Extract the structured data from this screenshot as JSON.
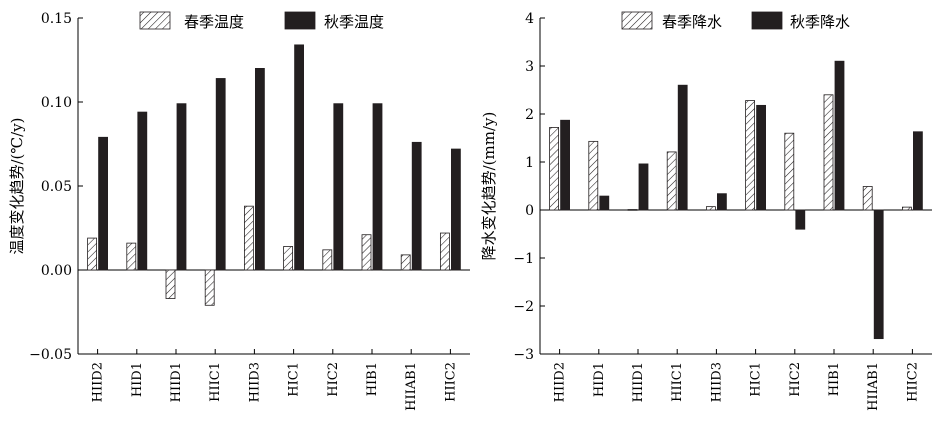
{
  "chart_data": [
    {
      "type": "bar",
      "title": "",
      "xlabel": "",
      "ylabel": "温度变化趋势/(℃/y)",
      "ylim": [
        -0.05,
        0.15
      ],
      "yticks": [
        -0.05,
        0.0,
        0.05,
        0.1,
        0.15
      ],
      "ytick_labels": [
        "−0.05",
        "0.00",
        "0.05",
        "0.10",
        "0.15"
      ],
      "grid": false,
      "legend": "top-center",
      "categories": [
        "HIID2",
        "HID1",
        "HIID1",
        "HIIC1",
        "HIID3",
        "HIC1",
        "HIC2",
        "HIB1",
        "HIIAB1",
        "HIIC2"
      ],
      "series": [
        {
          "name": "春季温度",
          "fill": "hatch",
          "values": [
            0.019,
            0.016,
            -0.017,
            -0.021,
            0.038,
            0.014,
            0.012,
            0.021,
            0.009,
            0.022
          ]
        },
        {
          "name": "秋季温度",
          "fill": "solid",
          "color": "#231f20",
          "values": [
            0.079,
            0.094,
            0.099,
            0.114,
            0.12,
            0.134,
            0.099,
            0.099,
            0.076,
            0.072
          ]
        }
      ]
    },
    {
      "type": "bar",
      "title": "",
      "xlabel": "",
      "ylabel": "降水变化趋势/(mm/y)",
      "ylim": [
        -3,
        4
      ],
      "yticks": [
        -3,
        -2,
        -1,
        0,
        1,
        2,
        3,
        4
      ],
      "ytick_labels": [
        "−3",
        "−2",
        "−1",
        "0",
        "1",
        "2",
        "3",
        "4"
      ],
      "grid": false,
      "legend": "top-center",
      "categories": [
        "HIID2",
        "HID1",
        "HIID1",
        "HIIC1",
        "HIID3",
        "HIC1",
        "HIC2",
        "HIB1",
        "HIIAB1",
        "HIIC2"
      ],
      "series": [
        {
          "name": "春季降水",
          "fill": "hatch",
          "values": [
            1.72,
            1.43,
            0.01,
            1.21,
            0.07,
            2.28,
            1.6,
            2.4,
            0.49,
            0.06
          ]
        },
        {
          "name": "秋季降水",
          "fill": "solid",
          "color": "#231f20",
          "values": [
            1.87,
            0.29,
            0.96,
            2.6,
            0.34,
            2.18,
            -0.4,
            3.1,
            -2.68,
            1.63
          ]
        }
      ]
    }
  ]
}
